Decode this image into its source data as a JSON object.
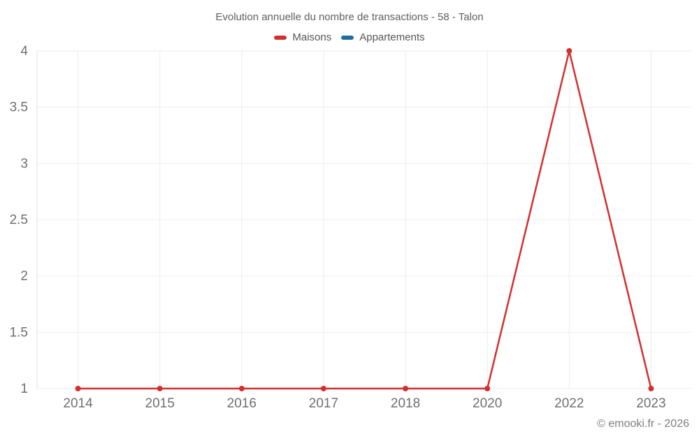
{
  "chart_data": {
    "type": "line",
    "title": "Evolution annuelle du nombre de transactions - 58 - Talon",
    "x_categories": [
      "2014",
      "2015",
      "2016",
      "2017",
      "2018",
      "2020",
      "2022",
      "2023"
    ],
    "series": [
      {
        "name": "Maisons",
        "color": "#d32f2f",
        "values": [
          1,
          1,
          1,
          1,
          1,
          1,
          4,
          1
        ]
      },
      {
        "name": "Appartements",
        "color": "#1c6e9e",
        "values": []
      }
    ],
    "y_ticks": [
      1,
      1.5,
      2,
      2.5,
      3,
      3.5,
      4
    ],
    "ylim": [
      1,
      4
    ],
    "grid": true,
    "legend_position": "top",
    "colors": {
      "grid": "#ededed",
      "axis_line": "#e3e3e3",
      "tick_text": "#6f6f6f"
    },
    "marker_radius": 4,
    "line_width": 2.5
  },
  "footer": {
    "text": "© emooki.fr - 2026"
  }
}
